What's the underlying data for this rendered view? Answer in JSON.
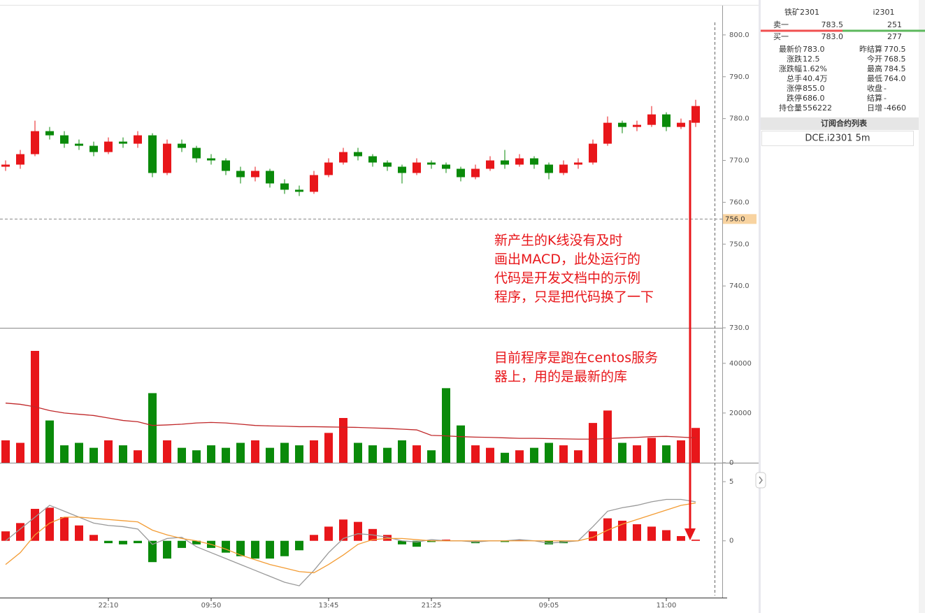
{
  "quote": {
    "name": "铁矿2301",
    "code": "i2301",
    "ask": {
      "label": "卖一",
      "price": "783.5",
      "volume": "251"
    },
    "bid": {
      "label": "买一",
      "price": "783.0",
      "volume": "277"
    },
    "stats": [
      [
        "最新价",
        "783.0",
        "昨结算",
        "770.5"
      ],
      [
        "涨跌",
        "12.5",
        "今开",
        "768.5"
      ],
      [
        "涨跌幅",
        "1.62%",
        "最高",
        "784.5"
      ],
      [
        "总手",
        "40.4万",
        "最低",
        "764.0"
      ],
      [
        "涨停",
        "855.0",
        "收盘",
        "-"
      ],
      [
        "跌停",
        "686.0",
        "结算",
        "-"
      ],
      [
        "持仓量",
        "556222",
        "日增",
        "-4660"
      ]
    ]
  },
  "subscriptions": {
    "title": "订阅合约列表",
    "items": [
      "DCE.i2301 5m"
    ]
  },
  "annotations": [
    [
      "新产生的K线没有及时",
      "画出MACD，此处运行的",
      "代码是开发文档中的示例",
      "程序，只是把代码换了一下"
    ],
    [
      "目前程序是跑在centos服务",
      "器上，用的是最新的库"
    ]
  ],
  "chart_data": [
    {
      "type": "candlestick",
      "categories": [
        null,
        null,
        null,
        null,
        null,
        null,
        null,
        "22:10",
        null,
        null,
        null,
        null,
        null,
        null,
        "09:50",
        null,
        null,
        null,
        null,
        null,
        null,
        null,
        "13:45",
        null,
        null,
        null,
        null,
        null,
        null,
        "21:25",
        null,
        null,
        null,
        null,
        null,
        null,
        null,
        "09:05",
        null,
        null,
        null,
        null,
        null,
        null,
        null,
        "11:00",
        null,
        null
      ],
      "open": [
        768.5,
        769.0,
        771.5,
        777.0,
        776.0,
        774.0,
        773.5,
        772.0,
        774.5,
        774.0,
        776.0,
        767.0,
        774.0,
        773.0,
        770.5,
        770.0,
        767.5,
        766.0,
        767.5,
        764.5,
        763.0,
        762.5,
        766.5,
        769.5,
        772.0,
        771.0,
        769.5,
        768.5,
        767.0,
        769.5,
        769.0,
        768.0,
        766.0,
        768.0,
        770.0,
        769.0,
        770.5,
        769.0,
        767.0,
        769.0,
        769.5,
        774.0,
        779.0,
        778.0,
        778.5,
        781.0,
        778.0,
        779.0
      ],
      "high": [
        770,
        772.5,
        779.5,
        778,
        777,
        775,
        774.5,
        775.5,
        775.5,
        777,
        776.5,
        775,
        775,
        773.5,
        771.5,
        770.5,
        768.5,
        768.5,
        768,
        765.5,
        764,
        767.5,
        770.5,
        773,
        773,
        771.5,
        770,
        769,
        770.5,
        770,
        769.5,
        768.5,
        769,
        771,
        772.5,
        771.5,
        771,
        769.5,
        770,
        770.5,
        775,
        780.5,
        779.5,
        779.5,
        783,
        781.5,
        780,
        784.5
      ],
      "low": [
        767.5,
        768,
        771,
        775,
        773,
        772.5,
        771,
        771.5,
        773,
        773,
        766,
        766.5,
        772,
        769.5,
        769,
        766.5,
        764.5,
        765,
        763.5,
        762,
        761.5,
        762,
        766,
        769,
        770,
        768.5,
        767.5,
        764.5,
        766.5,
        768,
        767,
        765,
        765.5,
        767.5,
        768,
        768.5,
        768,
        765.5,
        766.5,
        768,
        769,
        773.5,
        776.5,
        777,
        778,
        777,
        777.5,
        778
      ],
      "close": [
        769.0,
        771.5,
        777.0,
        776.0,
        774.0,
        773.5,
        772.0,
        774.5,
        774.0,
        776.0,
        767.0,
        774.0,
        773.0,
        770.5,
        770.0,
        767.5,
        766.0,
        767.5,
        764.5,
        763.0,
        762.5,
        766.5,
        769.5,
        772.0,
        771.0,
        769.5,
        768.5,
        767.0,
        769.5,
        769.0,
        768.0,
        766.0,
        768.0,
        770.0,
        769.0,
        770.5,
        769.0,
        767.0,
        769.0,
        769.5,
        774.0,
        779.0,
        778.0,
        778.5,
        781.0,
        778.0,
        779.0,
        783.0
      ],
      "up_color": "#e8161a",
      "down_color": "#0a8a0a",
      "ylim": [
        730,
        807
      ],
      "yticks": [
        {
          "value": 730,
          "label": "730.0"
        },
        {
          "value": 740,
          "label": "740.0"
        },
        {
          "value": 750,
          "label": "750.0"
        },
        {
          "value": 760,
          "label": "760.0"
        },
        {
          "value": 770,
          "label": "770.0"
        },
        {
          "value": 780,
          "label": "780.0"
        },
        {
          "value": 790,
          "label": "790.0"
        },
        {
          "value": 800,
          "label": "800.0"
        }
      ],
      "crosshair": {
        "value": 756,
        "label": "756.0"
      }
    },
    {
      "type": "volume",
      "values": [
        9000,
        8000,
        45000,
        17000,
        7000,
        8000,
        6000,
        9000,
        7000,
        5000,
        28000,
        9000,
        6000,
        5000,
        7000,
        6000,
        8000,
        9000,
        6000,
        8000,
        7000,
        9000,
        12000,
        18000,
        8000,
        7000,
        6000,
        9000,
        7000,
        5000,
        30000,
        15000,
        7000,
        6000,
        4000,
        5000,
        6000,
        8000,
        7000,
        5000,
        16000,
        21000,
        8000,
        7000,
        10000,
        7000,
        9000,
        14000
      ],
      "ma_values": [
        24000,
        23500,
        22500,
        21000,
        20000,
        19500,
        19000,
        18000,
        17000,
        16500,
        15000,
        15200,
        15500,
        16000,
        16200,
        16000,
        15500,
        15000,
        14800,
        14700,
        14500,
        14500,
        14400,
        14300,
        14200,
        14000,
        13800,
        13500,
        13200,
        11000,
        10800,
        10500,
        10300,
        10200,
        10000,
        9800,
        9800,
        9700,
        9600,
        9500,
        9500,
        9700,
        10000,
        10200,
        10500,
        10600,
        10300,
        10000
      ],
      "ma_color": "#c0282a",
      "ylim": [
        0,
        54000
      ],
      "yticks": [
        0,
        20000,
        40000
      ]
    },
    {
      "type": "macd",
      "histogram": [
        0.8,
        1.5,
        2.7,
        2.8,
        2.0,
        1.3,
        0.5,
        -0.2,
        -0.3,
        -0.2,
        -1.8,
        -1.5,
        -0.6,
        -0.3,
        -0.6,
        -1.0,
        -1.3,
        -1.5,
        -1.5,
        -1.3,
        -0.8,
        0.5,
        1.2,
        1.8,
        1.6,
        1.0,
        0.5,
        -0.3,
        -0.5,
        -0.1,
        0.1,
        0.0,
        -0.2,
        0.0,
        -0.1,
        0.1,
        0.0,
        -0.3,
        -0.2,
        0.0,
        0.8,
        1.9,
        1.7,
        1.4,
        1.2,
        0.9,
        0.4,
        0.1
      ],
      "dif": {
        "color": "#999999",
        "values": [
          0.0,
          1.0,
          2.0,
          3.0,
          2.5,
          2.0,
          1.5,
          1.3,
          1.2,
          1.0,
          -0.3,
          0.2,
          0.3,
          -0.5,
          -1.0,
          -1.5,
          -2.0,
          -2.5,
          -3.0,
          -3.5,
          -3.8,
          -2.5,
          -1.0,
          0.2,
          0.6,
          0.5,
          0.3,
          0.0,
          -0.1,
          0.1,
          0.0,
          0.0,
          -0.1,
          0.0,
          0.0,
          0.1,
          0.0,
          -0.2,
          -0.1,
          0.0,
          1.2,
          2.5,
          2.8,
          3.0,
          3.3,
          3.5,
          3.5,
          3.3
        ]
      },
      "dea": {
        "color": "#f39c34",
        "values": [
          -2.0,
          -1.0,
          0.5,
          1.5,
          2.0,
          2.0,
          1.9,
          1.8,
          1.7,
          1.6,
          0.9,
          0.5,
          0.2,
          0.0,
          -0.3,
          -0.7,
          -1.2,
          -1.6,
          -2.0,
          -2.3,
          -2.6,
          -2.7,
          -2.0,
          -1.2,
          -0.3,
          0.1,
          0.2,
          0.2,
          0.1,
          0.0,
          0.0,
          0.0,
          0.0,
          0.0,
          0.0,
          0.0,
          0.0,
          0.0,
          0.0,
          0.0,
          0.3,
          0.9,
          1.4,
          1.8,
          2.2,
          2.6,
          3.0,
          3.2
        ]
      },
      "up_color": "#e8161a",
      "down_color": "#0a8a0a",
      "ylim": [
        -4.8,
        6.6
      ],
      "yticks": [
        0,
        5
      ]
    }
  ]
}
